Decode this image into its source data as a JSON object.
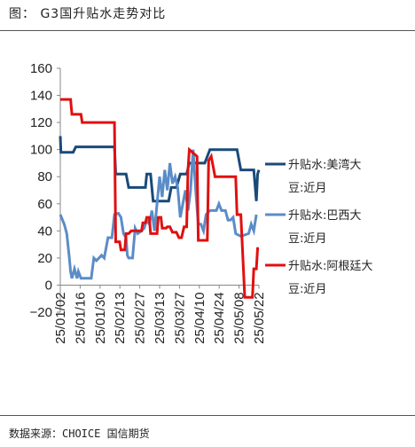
{
  "header": {
    "title": "图：  G3国升贴水走势对比"
  },
  "footer": {
    "source": "数据来源：CHOICE 国信期货"
  },
  "colors": {
    "us": "#1a4a7a",
    "brazil": "#5b8cc8",
    "argentina": "#e01010"
  },
  "chart_data": {
    "type": "line",
    "title": "G3国升贴水走势对比",
    "ylim": [
      -20,
      160
    ],
    "yticks": [
      "160",
      "140",
      "120",
      "100",
      "80",
      "60",
      "40",
      "20",
      "0",
      "−20"
    ],
    "xticks": [
      "25/01/02",
      "25/01/16",
      "25/01/30",
      "25/02/13",
      "25/02/27",
      "25/03/13",
      "25/03/27",
      "25/04/10",
      "25/04/24",
      "25/05/08",
      "25/05/22"
    ],
    "grid": false,
    "legend": "right",
    "series": [
      {
        "name": "升贴水:美湾大豆:近月",
        "color_key": "us",
        "points": [
          [
            0,
            110
          ],
          [
            0.5,
            98
          ],
          [
            2,
            98
          ],
          [
            10,
            98
          ],
          [
            12,
            102
          ],
          [
            24,
            102
          ],
          [
            42,
            102
          ],
          [
            43,
            82
          ],
          [
            51,
            82
          ],
          [
            53,
            72
          ],
          [
            66,
            72
          ],
          [
            67,
            82
          ],
          [
            70,
            82
          ],
          [
            72,
            62
          ],
          [
            74,
            62
          ],
          [
            84,
            62
          ],
          [
            86,
            72
          ],
          [
            89,
            72
          ],
          [
            90,
            72
          ],
          [
            93,
            82
          ],
          [
            98,
            82
          ],
          [
            100,
            90
          ],
          [
            112,
            90
          ],
          [
            116,
            100
          ],
          [
            137,
            100
          ],
          [
            140,
            85
          ],
          [
            150,
            85
          ],
          [
            152,
            62
          ],
          [
            153,
            82
          ],
          [
            154,
            85
          ]
        ]
      },
      {
        "name": "升贴水:巴西大豆:近月",
        "color_key": "brazil",
        "points": [
          [
            0,
            52
          ],
          [
            3,
            45
          ],
          [
            5,
            38
          ],
          [
            7,
            20
          ],
          [
            8,
            10
          ],
          [
            9,
            5
          ],
          [
            11,
            12
          ],
          [
            13,
            5
          ],
          [
            14,
            10
          ],
          [
            16,
            5
          ],
          [
            24,
            5
          ],
          [
            26,
            20
          ],
          [
            28,
            18
          ],
          [
            30,
            20
          ],
          [
            32,
            22
          ],
          [
            34,
            20
          ],
          [
            37,
            35
          ],
          [
            40,
            35
          ],
          [
            42,
            52
          ],
          [
            45,
            53
          ],
          [
            47,
            50
          ],
          [
            49,
            38
          ],
          [
            51,
            35
          ],
          [
            52,
            22
          ],
          [
            53,
            20
          ],
          [
            56,
            20
          ],
          [
            58,
            42
          ],
          [
            60,
            38
          ],
          [
            63,
            40
          ],
          [
            65,
            42
          ],
          [
            67,
            48
          ],
          [
            69,
            45
          ],
          [
            71,
            55
          ],
          [
            73,
            40
          ],
          [
            75,
            60
          ],
          [
            77,
            80
          ],
          [
            79,
            65
          ],
          [
            81,
            85
          ],
          [
            83,
            70
          ],
          [
            85,
            90
          ],
          [
            87,
            75
          ],
          [
            89,
            80
          ],
          [
            91,
            72
          ],
          [
            93,
            50
          ],
          [
            95,
            60
          ],
          [
            97,
            70
          ],
          [
            99,
            55
          ],
          [
            101,
            70
          ],
          [
            103,
            100
          ],
          [
            105,
            70
          ],
          [
            107,
            45
          ],
          [
            109,
            45
          ],
          [
            111,
            40
          ],
          [
            113,
            52
          ],
          [
            116,
            55
          ],
          [
            121,
            55
          ],
          [
            123,
            60
          ],
          [
            125,
            55
          ],
          [
            128,
            55
          ],
          [
            130,
            48
          ],
          [
            132,
            48
          ],
          [
            134,
            50
          ],
          [
            136,
            38
          ],
          [
            140,
            36
          ],
          [
            146,
            38
          ],
          [
            148,
            45
          ],
          [
            150,
            40
          ],
          [
            152,
            52
          ]
        ]
      },
      {
        "name": "升贴水:阿根廷大豆:近月",
        "color_key": "argentina",
        "points": [
          [
            0,
            137
          ],
          [
            8,
            137
          ],
          [
            9,
            126
          ],
          [
            16,
            126
          ],
          [
            17,
            120
          ],
          [
            42,
            120
          ],
          [
            43,
            32
          ],
          [
            46,
            32
          ],
          [
            47,
            26
          ],
          [
            50,
            26
          ],
          [
            51,
            38
          ],
          [
            53,
            38
          ],
          [
            55,
            40
          ],
          [
            63,
            40
          ],
          [
            64,
            46
          ],
          [
            66,
            46
          ],
          [
            67,
            50
          ],
          [
            69,
            50
          ],
          [
            70,
            38
          ],
          [
            75,
            38
          ],
          [
            76,
            50
          ],
          [
            78,
            50
          ],
          [
            79,
            42
          ],
          [
            82,
            42
          ],
          [
            83,
            43
          ],
          [
            85,
            43
          ],
          [
            87,
            39
          ],
          [
            90,
            39
          ],
          [
            92,
            35
          ],
          [
            94,
            35
          ],
          [
            96,
            43
          ],
          [
            98,
            43
          ],
          [
            99,
            85
          ],
          [
            100,
            100
          ],
          [
            106,
            95
          ],
          [
            107,
            33
          ],
          [
            114,
            33
          ],
          [
            115,
            92
          ],
          [
            117,
            95
          ],
          [
            119,
            85
          ],
          [
            120,
            80
          ],
          [
            136,
            80
          ],
          [
            137,
            52
          ],
          [
            140,
            52
          ],
          [
            142,
            12
          ],
          [
            143,
            -9
          ],
          [
            149,
            -9
          ],
          [
            150,
            12
          ],
          [
            152,
            12
          ],
          [
            153,
            27
          ],
          [
            154,
            27
          ]
        ]
      }
    ]
  },
  "legend": [
    {
      "line1": "升贴水:美湾大",
      "line2": "豆:近月",
      "color_key": "us"
    },
    {
      "line1": "升贴水:巴西大",
      "line2": "豆:近月",
      "color_key": "brazil"
    },
    {
      "line1": "升贴水:阿根廷大",
      "line2": "豆:近月",
      "color_key": "argentina"
    }
  ]
}
